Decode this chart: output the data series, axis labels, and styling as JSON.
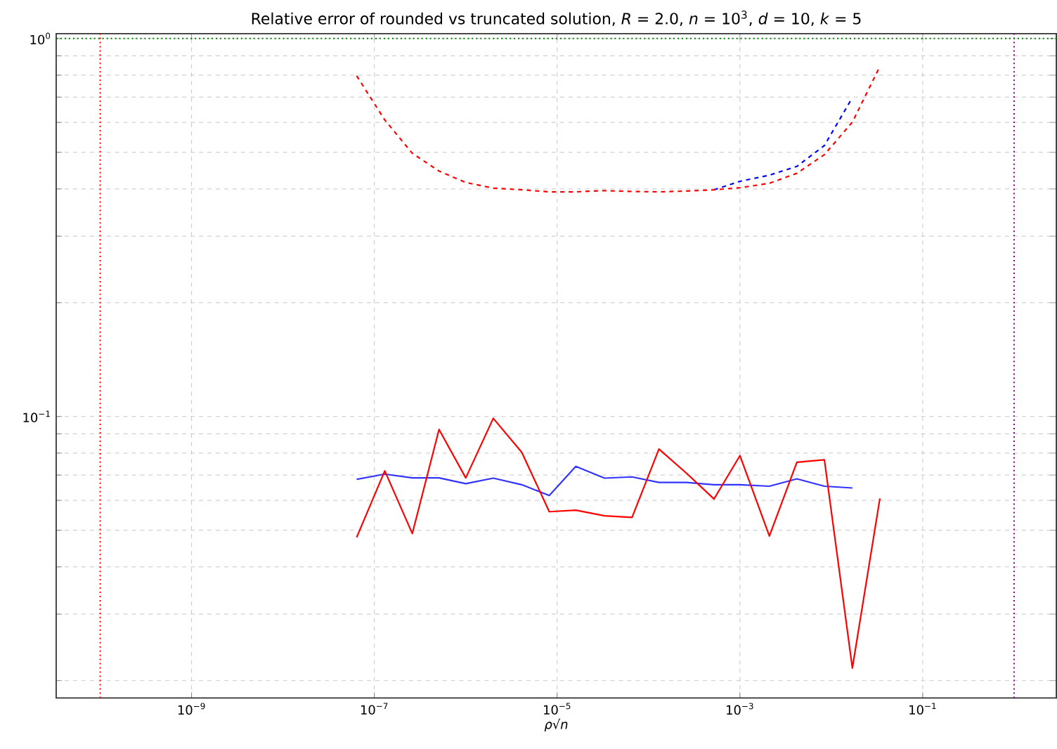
{
  "chart_data": {
    "type": "line",
    "title": "Relative error of rounded vs truncated solution, *R* = 2.0, *n* = 10$^{3}$, *d* = 10, *k* = 5",
    "xlabel": "*ρ*√*n*",
    "log": "xy",
    "grid": true,
    "x": [
      6.4e-08,
      1.3e-07,
      2.6e-07,
      5.1e-07,
      1e-06,
      2e-06,
      4.1e-06,
      8.2e-06,
      1.6e-05,
      3.3e-05,
      6.6e-05,
      0.00013,
      0.00026,
      0.00052,
      0.001,
      0.0021,
      0.0042,
      0.0084,
      0.017,
      0.034
    ],
    "xlim": [
      3.3e-11,
      2.9
    ],
    "ylim": [
      0.018,
      1.03
    ],
    "xticks": [
      {
        "value": 1e-09,
        "label": "10$^{−9}$"
      },
      {
        "value": 1e-07,
        "label": "10$^{−7}$"
      },
      {
        "value": 1e-05,
        "label": "10$^{−5}$"
      },
      {
        "value": 0.001,
        "label": "10$^{−3}$"
      },
      {
        "value": 0.1,
        "label": "10$^{−1}$"
      }
    ],
    "yticks": [
      {
        "value": 0.02,
        "label": null
      },
      {
        "value": 0.03,
        "label": null
      },
      {
        "value": 0.04,
        "label": null
      },
      {
        "value": 0.05,
        "label": null
      },
      {
        "value": 0.06,
        "label": null
      },
      {
        "value": 0.07,
        "label": null
      },
      {
        "value": 0.08,
        "label": null
      },
      {
        "value": 0.09,
        "label": null
      },
      {
        "value": 0.1,
        "label": "10$^{−1}$"
      },
      {
        "value": 0.2,
        "label": null
      },
      {
        "value": 0.3,
        "label": null
      },
      {
        "value": 0.4,
        "label": null
      },
      {
        "value": 0.5,
        "label": null
      },
      {
        "value": 0.6,
        "label": null
      },
      {
        "value": 0.7,
        "label": null
      },
      {
        "value": 0.8,
        "label": null
      },
      {
        "value": 0.9,
        "label": null
      },
      {
        "value": 1,
        "label": "10$^{0}$"
      }
    ],
    "series": [
      {
        "color": "#0000ff",
        "line_style": "dashed",
        "values": [
          null,
          null,
          null,
          null,
          null,
          null,
          null,
          null,
          null,
          null,
          null,
          null,
          null,
          0.398,
          0.419,
          0.435,
          0.459,
          0.521,
          0.698,
          null
        ]
      },
      {
        "color": "#ff0000",
        "line_style": "dashed",
        "values": [
          0.797,
          0.609,
          0.497,
          0.446,
          0.416,
          0.402,
          0.398,
          0.393,
          0.393,
          0.396,
          0.394,
          0.393,
          0.395,
          0.398,
          0.403,
          0.414,
          0.44,
          0.493,
          0.601,
          0.844
        ]
      },
      {
        "color": "#3333ff",
        "line_style": "solid",
        "values": [
          0.0682,
          0.0704,
          0.0688,
          0.0688,
          0.0664,
          0.0687,
          0.066,
          0.0618,
          0.0738,
          0.0687,
          0.0692,
          0.0669,
          0.0669,
          0.066,
          0.066,
          0.0654,
          0.0684,
          0.0654,
          0.0647,
          null
        ]
      },
      {
        "color": "#ff0000",
        "line_style": "solid",
        "values": [
          0.0479,
          0.0718,
          0.049,
          0.0924,
          0.0688,
          0.0989,
          0.0804,
          0.056,
          0.0565,
          0.0546,
          0.0541,
          0.082,
          0.0708,
          0.0605,
          0.0788,
          0.0483,
          0.0757,
          0.0768,
          0.0216,
          0.0607
        ]
      }
    ],
    "ref_lines": [
      {
        "axis": "x",
        "value": 1e-10,
        "color": "#ff0000",
        "line_style": "dotted"
      },
      {
        "axis": "x",
        "value": 1,
        "color": "#800080",
        "line_style": "dotted"
      },
      {
        "axis": "y",
        "value": 1,
        "color": "#008000",
        "line_style": "dotted"
      }
    ]
  }
}
